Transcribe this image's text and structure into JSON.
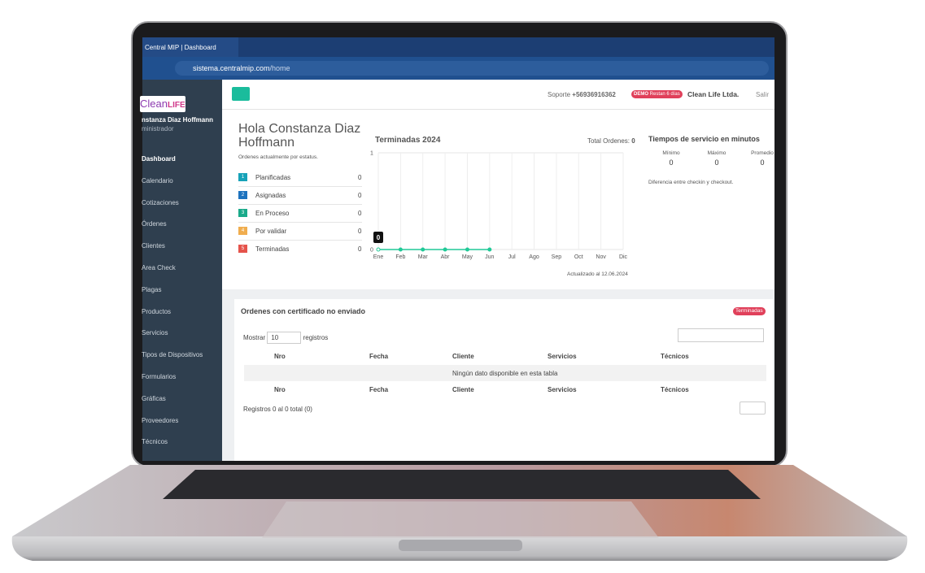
{
  "browser": {
    "tab_title": "Central MIP | Dashboard",
    "url_host": "sistema.centralmip.com",
    "url_path": "/home"
  },
  "sidebar": {
    "logo_a": "Clean",
    "logo_b": "LIFE",
    "user_name": "nstanza Diaz Hoffmann",
    "role": "ministrador",
    "menu": [
      "Dashboard",
      "Calendario",
      "Cotizaciones",
      "Órdenes",
      "Clientes",
      "Area Check",
      "Plagas",
      "Productos",
      "Servicios",
      "Tipos de Dispositivos",
      "Formularios",
      "Gráficas",
      "Proveedores",
      "Técnicos"
    ]
  },
  "topbar": {
    "support_label": "Soporte",
    "phone": "+56936916362",
    "demo": "DEMO",
    "demo_note": "Restan 6 días",
    "company": "Clean Life Ltda.",
    "logout": "Salir"
  },
  "greeting": {
    "title": "Hola Constanza Diaz Hoffmann",
    "subtitle": "Ordenes actualmente por estatus.",
    "statuses": [
      {
        "num": 1,
        "label": "Planificadas",
        "count": 0
      },
      {
        "num": 2,
        "label": "Asignadas",
        "count": 0
      },
      {
        "num": 3,
        "label": "En Proceso",
        "count": 0
      },
      {
        "num": 4,
        "label": "Por validar",
        "count": 0
      },
      {
        "num": 5,
        "label": "Terminadas",
        "count": 0
      }
    ]
  },
  "chart_data": {
    "type": "line",
    "title": "Terminadas 2024",
    "total_label": "Total Ordenes:",
    "total": 0,
    "categories": [
      "Ene",
      "Feb",
      "Mar",
      "Abr",
      "May",
      "Jun",
      "Jul",
      "Ago",
      "Sep",
      "Oct",
      "Nov",
      "Dic"
    ],
    "values": [
      0,
      0,
      0,
      0,
      0,
      0,
      null,
      null,
      null,
      null,
      null,
      null
    ],
    "color": "#20c997",
    "ylim": [
      0,
      1
    ],
    "yticks": [
      0,
      1
    ],
    "grid": true,
    "updated": "Actualizado al 12.06.2024"
  },
  "service_times": {
    "title": "Tiempos de servicio en minutos",
    "columns": [
      {
        "label": "Mínimo",
        "value": 0
      },
      {
        "label": "Máximo",
        "value": 0
      },
      {
        "label": "Promedio",
        "value": 0
      }
    ],
    "note": "Diferencia entre checkin y checkout."
  },
  "table": {
    "title": "Ordenes con certificado no enviado",
    "badge": "Terminadas",
    "show_label": "Mostrar",
    "page_size": 10,
    "records_label": "registros",
    "columns": [
      "Nro",
      "Fecha",
      "Cliente",
      "Servicios",
      "Técnicos"
    ],
    "empty": "Ningún dato disponible en esta tabla",
    "info": "Registros 0 al 0 total (0)"
  }
}
